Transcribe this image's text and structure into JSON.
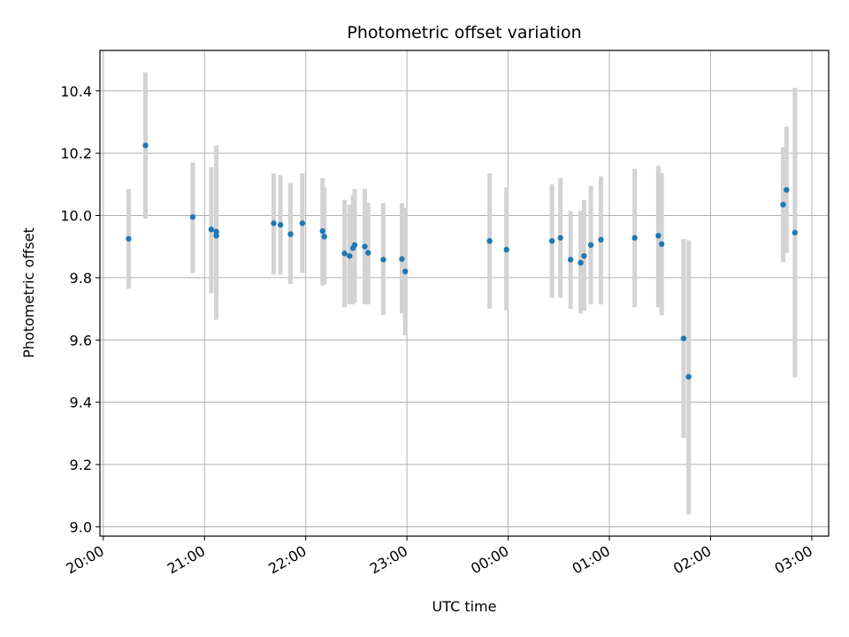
{
  "chart_data": {
    "type": "scatter",
    "title": "Photometric offset variation",
    "xlabel": "UTC time",
    "ylabel": "Photometric offset",
    "x_ticks": [
      "20:00",
      "21:00",
      "22:00",
      "23:00",
      "00:00",
      "01:00",
      "02:00",
      "03:00"
    ],
    "y_ticks": [
      "9.0",
      "9.2",
      "9.4",
      "9.6",
      "9.8",
      "10.0",
      "10.2",
      "10.4"
    ],
    "xlim": [
      "19:58",
      "03:10"
    ],
    "ylim": [
      8.97,
      10.53
    ],
    "grid": true,
    "point_color": "#1f77b4",
    "errorbar_color": "#d3d3d3",
    "points": [
      {
        "x": "20:15",
        "y": 9.925,
        "lo": 9.765,
        "hi": 10.085
      },
      {
        "x": "20:25",
        "y": 10.225,
        "lo": 9.99,
        "hi": 10.46
      },
      {
        "x": "20:53",
        "y": 9.995,
        "lo": 9.815,
        "hi": 10.17
      },
      {
        "x": "21:04",
        "y": 9.955,
        "lo": 9.75,
        "hi": 10.155
      },
      {
        "x": "21:07",
        "y": 9.935,
        "lo": 9.665,
        "hi": 10.225
      },
      {
        "x": "21:07",
        "y": 9.948,
        "lo": 9.75,
        "hi": 10.15
      },
      {
        "x": "21:41",
        "y": 9.975,
        "lo": 9.81,
        "hi": 10.135
      },
      {
        "x": "21:45",
        "y": 9.97,
        "lo": 9.81,
        "hi": 10.13
      },
      {
        "x": "21:51",
        "y": 9.94,
        "lo": 9.78,
        "hi": 10.105
      },
      {
        "x": "21:58",
        "y": 9.975,
        "lo": 9.815,
        "hi": 10.135
      },
      {
        "x": "22:10",
        "y": 9.95,
        "lo": 9.775,
        "hi": 10.12
      },
      {
        "x": "22:11",
        "y": 9.932,
        "lo": 9.78,
        "hi": 10.09
      },
      {
        "x": "22:23",
        "y": 9.878,
        "lo": 9.705,
        "hi": 10.05
      },
      {
        "x": "22:26",
        "y": 9.87,
        "lo": 9.715,
        "hi": 10.035
      },
      {
        "x": "22:28",
        "y": 9.895,
        "lo": 9.715,
        "hi": 10.065
      },
      {
        "x": "22:29",
        "y": 9.905,
        "lo": 9.72,
        "hi": 10.085
      },
      {
        "x": "22:35",
        "y": 9.9,
        "lo": 9.715,
        "hi": 10.085
      },
      {
        "x": "22:37",
        "y": 9.88,
        "lo": 9.715,
        "hi": 10.04
      },
      {
        "x": "22:46",
        "y": 9.858,
        "lo": 9.68,
        "hi": 10.04
      },
      {
        "x": "22:57",
        "y": 9.86,
        "lo": 9.685,
        "hi": 10.04
      },
      {
        "x": "22:59",
        "y": 9.82,
        "lo": 9.615,
        "hi": 10.025
      },
      {
        "x": "23:49",
        "y": 9.918,
        "lo": 9.7,
        "hi": 10.135
      },
      {
        "x": "23:59",
        "y": 9.89,
        "lo": 9.695,
        "hi": 10.09
      },
      {
        "x": "00:26",
        "y": 9.918,
        "lo": 9.735,
        "hi": 10.1
      },
      {
        "x": "00:31",
        "y": 9.928,
        "lo": 9.735,
        "hi": 10.12
      },
      {
        "x": "00:37",
        "y": 9.858,
        "lo": 9.7,
        "hi": 10.015
      },
      {
        "x": "00:43",
        "y": 9.848,
        "lo": 9.685,
        "hi": 10.015
      },
      {
        "x": "00:45",
        "y": 9.87,
        "lo": 9.695,
        "hi": 10.05
      },
      {
        "x": "00:49",
        "y": 9.905,
        "lo": 9.715,
        "hi": 10.095
      },
      {
        "x": "00:55",
        "y": 9.922,
        "lo": 9.715,
        "hi": 10.125
      },
      {
        "x": "01:15",
        "y": 9.928,
        "lo": 9.705,
        "hi": 10.15
      },
      {
        "x": "01:29",
        "y": 9.935,
        "lo": 9.705,
        "hi": 10.16
      },
      {
        "x": "01:31",
        "y": 9.908,
        "lo": 9.68,
        "hi": 10.135
      },
      {
        "x": "01:44",
        "y": 9.605,
        "lo": 9.285,
        "hi": 9.925
      },
      {
        "x": "01:47",
        "y": 9.482,
        "lo": 9.04,
        "hi": 9.92
      },
      {
        "x": "02:43",
        "y": 10.035,
        "lo": 9.85,
        "hi": 10.22
      },
      {
        "x": "02:45",
        "y": 10.082,
        "lo": 9.88,
        "hi": 10.285
      },
      {
        "x": "02:50",
        "y": 9.945,
        "lo": 9.48,
        "hi": 10.41
      }
    ]
  }
}
